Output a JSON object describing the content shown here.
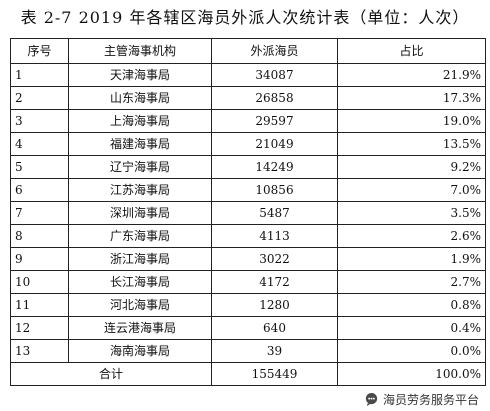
{
  "title": "表 2-7 2019 年各辖区海员外派人次统计表（单位：人次）",
  "table": {
    "headers": [
      "序号",
      "主管海事机构",
      "外派海员",
      "占比"
    ],
    "rows": [
      {
        "seq": "1",
        "org": "天津海事局",
        "count": "34087",
        "share": "21.9%"
      },
      {
        "seq": "2",
        "org": "山东海事局",
        "count": "26858",
        "share": "17.3%"
      },
      {
        "seq": "3",
        "org": "上海海事局",
        "count": "29597",
        "share": "19.0%"
      },
      {
        "seq": "4",
        "org": "福建海事局",
        "count": "21049",
        "share": "13.5%"
      },
      {
        "seq": "5",
        "org": "辽宁海事局",
        "count": "14249",
        "share": "9.2%"
      },
      {
        "seq": "6",
        "org": "江苏海事局",
        "count": "10856",
        "share": "7.0%"
      },
      {
        "seq": "7",
        "org": "深圳海事局",
        "count": "5487",
        "share": "3.5%"
      },
      {
        "seq": "8",
        "org": "广东海事局",
        "count": "4113",
        "share": "2.6%"
      },
      {
        "seq": "9",
        "org": "浙江海事局",
        "count": "3022",
        "share": "1.9%"
      },
      {
        "seq": "10",
        "org": "长江海事局",
        "count": "4172",
        "share": "2.7%"
      },
      {
        "seq": "11",
        "org": "河北海事局",
        "count": "1280",
        "share": "0.8%"
      },
      {
        "seq": "12",
        "org": "连云港海事局",
        "count": "640",
        "share": "0.4%"
      },
      {
        "seq": "13",
        "org": "海南海事局",
        "count": "39",
        "share": "0.0%"
      }
    ],
    "total": {
      "label": "合计",
      "count": "155449",
      "share": "100.0%"
    }
  },
  "watermark": {
    "text": "海员劳务服务平台",
    "icon": "chat-bubble-icon"
  }
}
